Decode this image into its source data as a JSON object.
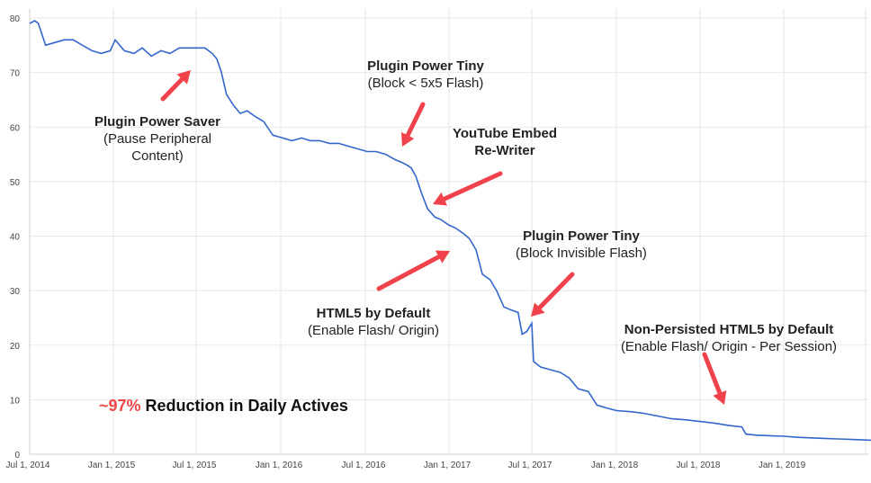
{
  "chart_data": {
    "type": "line",
    "ylim": [
      0,
      80
    ],
    "yticks": [
      "0",
      "10",
      "20",
      "30",
      "40",
      "50",
      "60",
      "70",
      "80"
    ],
    "xticks": [
      "Jul 1, 2014",
      "Jan 1, 2015",
      "Jul 1, 2015",
      "Jan 1, 2016",
      "Jul 1, 2016",
      "Jan 1, 2017",
      "Jul 1, 2017",
      "Jan 1, 2018",
      "Jul 1, 2018",
      "Jan 1, 2019",
      ""
    ],
    "xlabel": "",
    "ylabel": "",
    "title": "",
    "grid": true,
    "series": [
      {
        "color": "#3366cc",
        "x": [
          "2014-07-01",
          "2014-07-12",
          "2014-07-20",
          "2014-08-05",
          "2014-08-25",
          "2014-09-15",
          "2014-10-05",
          "2014-10-25",
          "2014-11-15",
          "2014-12-05",
          "2014-12-25",
          "2015-01-05",
          "2015-01-25",
          "2015-02-15",
          "2015-03-05",
          "2015-03-25",
          "2015-04-15",
          "2015-05-05",
          "2015-05-25",
          "2015-06-15",
          "2015-07-05",
          "2015-07-20",
          "2015-08-05",
          "2015-08-15",
          "2015-08-25",
          "2015-09-05",
          "2015-09-20",
          "2015-10-05",
          "2015-10-20",
          "2015-11-05",
          "2015-11-25",
          "2015-12-15",
          "2016-01-05",
          "2016-01-25",
          "2016-02-15",
          "2016-03-05",
          "2016-03-25",
          "2016-04-15",
          "2016-05-05",
          "2016-05-25",
          "2016-06-15",
          "2016-07-05",
          "2016-07-25",
          "2016-08-15",
          "2016-09-05",
          "2016-09-20",
          "2016-10-01",
          "2016-10-10",
          "2016-10-20",
          "2016-11-01",
          "2016-11-15",
          "2016-12-01",
          "2016-12-15",
          "2017-01-01",
          "2017-01-15",
          "2017-02-01",
          "2017-02-15",
          "2017-03-01",
          "2017-03-15",
          "2017-04-01",
          "2017-04-15",
          "2017-05-01",
          "2017-05-15",
          "2017-06-01",
          "2017-06-10",
          "2017-06-20",
          "2017-07-01",
          "2017-07-05",
          "2017-07-20",
          "2017-08-10",
          "2017-09-01",
          "2017-09-20",
          "2017-10-10",
          "2017-11-01",
          "2017-11-20",
          "2017-12-10",
          "2018-01-01",
          "2018-02-01",
          "2018-03-01",
          "2018-04-01",
          "2018-05-01",
          "2018-06-01",
          "2018-07-01",
          "2018-08-01",
          "2018-09-01",
          "2018-10-01",
          "2018-10-10",
          "2018-11-01",
          "2018-12-01",
          "2019-01-01",
          "2019-02-01",
          "2019-03-01",
          "2019-04-01",
          "2019-05-01",
          "2019-06-01",
          "2019-07-01",
          "2019-08-01",
          "2019-08-25"
        ],
        "values": [
          79,
          79.5,
          79,
          75,
          75.5,
          76,
          76,
          75,
          74,
          73.5,
          74,
          76,
          74,
          73.5,
          74.5,
          73,
          74,
          73.5,
          74.5,
          74.5,
          74.5,
          74.5,
          73.5,
          72.5,
          70,
          66,
          64,
          62.5,
          63,
          62,
          61,
          58.5,
          58,
          57.5,
          58,
          57.5,
          57.5,
          57,
          57,
          56.5,
          56,
          55.5,
          55.5,
          55,
          54,
          53.5,
          53,
          52.5,
          51,
          48,
          45,
          43.5,
          43,
          42,
          41.5,
          40.5,
          39.5,
          37.5,
          33,
          32,
          30,
          27,
          26.5,
          26,
          22,
          22.5,
          24,
          17,
          16,
          15.5,
          15,
          14,
          12,
          11.5,
          9,
          8.5,
          8,
          7.8,
          7.5,
          7,
          6.5,
          6.3,
          6,
          5.7,
          5.3,
          5,
          3.7,
          3.5,
          3.4,
          3.3,
          3.1,
          3,
          2.9,
          2.8,
          2.7,
          2.6,
          2.5,
          2.4
        ]
      }
    ],
    "annotations": [
      {
        "title": "Plugin Power Saver",
        "subtitle": "(Pause Peripheral",
        "subtitle2": "Content)"
      },
      {
        "title": "Plugin Power Tiny",
        "subtitle": "(Block < 5x5 Flash)"
      },
      {
        "title": "YouTube Embed",
        "subtitle": "Re-Writer"
      },
      {
        "title": "Plugin Power Tiny",
        "subtitle": "(Block Invisible Flash)"
      },
      {
        "title": "HTML5 by Default",
        "subtitle": "(Enable Flash/ Origin)"
      },
      {
        "title": "Non-Persisted HTML5 by Default",
        "subtitle": "(Enable Flash/ Origin - Per Session)"
      }
    ],
    "headline": {
      "percent": "~97%",
      "text": " Reduction in Daily Actives"
    },
    "accent_color": "#f0424a"
  }
}
